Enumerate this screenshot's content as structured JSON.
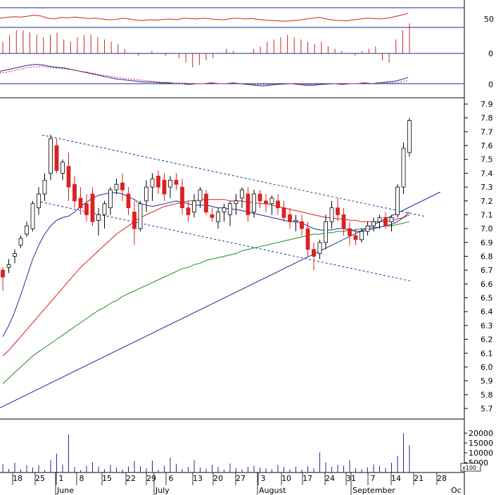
{
  "chart_data": {
    "type": "candlestick",
    "panels": {
      "rsi": {
        "ticks": [
          "50"
        ],
        "series": [
          52,
          54,
          56,
          55,
          57,
          60,
          58,
          52,
          50,
          54,
          53,
          55,
          53,
          51,
          52,
          50,
          48,
          49,
          52,
          50,
          47,
          46,
          48,
          47,
          49,
          50,
          48,
          52,
          51,
          50,
          52,
          50,
          49,
          48,
          51,
          52,
          50,
          51,
          49,
          47,
          46,
          45,
          44,
          46,
          47,
          50,
          52,
          54,
          50,
          47,
          46,
          45,
          48,
          50,
          52,
          51,
          50,
          52,
          56,
          60,
          65
        ]
      },
      "momentum": {
        "ticks": [
          "0"
        ],
        "values": [
          5,
          8,
          10,
          10,
          9,
          8,
          7,
          8,
          9,
          6,
          5,
          7,
          8,
          8,
          7,
          6,
          5,
          4,
          2,
          0,
          -1,
          0,
          1,
          0,
          -1,
          0,
          -2,
          -4,
          -6,
          -5,
          -3,
          -2,
          0,
          2,
          1,
          0,
          0,
          2,
          3,
          5,
          6,
          7,
          8,
          7,
          6,
          5,
          4,
          5,
          3,
          2,
          1,
          0,
          -1,
          1,
          2,
          3,
          -3,
          -4,
          6,
          10,
          13
        ]
      },
      "macd": {
        "ticks": [
          "0"
        ],
        "macd": [
          16,
          18,
          20,
          22,
          24,
          25,
          24,
          22,
          21,
          20,
          18,
          16,
          14,
          12,
          10,
          8,
          6,
          5,
          4,
          3,
          2,
          2,
          1,
          1,
          0,
          0,
          -1,
          0,
          0,
          1,
          0,
          0,
          1,
          0,
          -1,
          -2,
          -3,
          -2,
          -1,
          0,
          0,
          -1,
          -2,
          -2,
          -1,
          0,
          0,
          -1,
          0,
          0,
          1,
          0,
          1,
          2,
          3,
          5,
          8
        ],
        "signal": [
          14,
          15,
          17,
          19,
          21,
          22,
          22,
          21,
          20,
          19,
          18,
          16,
          15,
          13,
          11,
          10,
          8,
          7,
          6,
          5,
          4,
          3,
          2,
          2,
          1,
          1,
          0,
          0,
          0,
          0,
          0,
          0,
          0,
          0,
          0,
          -1,
          -1,
          -1,
          -1,
          -1,
          0,
          0,
          -1,
          -1,
          -1,
          -1,
          0,
          0,
          0,
          0,
          0,
          0,
          0,
          1,
          1,
          2,
          4
        ]
      }
    },
    "price": {
      "y_ticks": [
        "7.9",
        "7.8",
        "7.7",
        "7.6",
        "7.5",
        "7.4",
        "7.3",
        "7.2",
        "7.1",
        "7.0",
        "6.9",
        "6.8",
        "6.7",
        "6.6",
        "6.5",
        "6.4",
        "6.3",
        "6.2",
        "6.1",
        "6.0",
        "5.9",
        "5.8",
        "5.7"
      ],
      "ylim": [
        5.63,
        7.96
      ],
      "candles": [
        [
          6.7,
          6.72,
          6.55,
          6.65
        ],
        [
          6.72,
          6.78,
          6.68,
          6.74
        ],
        [
          6.8,
          6.85,
          6.75,
          6.82
        ],
        [
          6.88,
          6.95,
          6.86,
          6.93
        ],
        [
          6.96,
          7.05,
          6.94,
          7.02
        ],
        [
          7.0,
          7.2,
          6.98,
          7.18
        ],
        [
          7.15,
          7.3,
          7.1,
          7.25
        ],
        [
          7.25,
          7.4,
          7.2,
          7.35
        ],
        [
          7.4,
          7.68,
          7.35,
          7.65
        ],
        [
          7.6,
          7.65,
          7.4,
          7.42
        ],
        [
          7.4,
          7.5,
          7.35,
          7.48
        ],
        [
          7.45,
          7.55,
          7.2,
          7.3
        ],
        [
          7.32,
          7.38,
          7.15,
          7.2
        ],
        [
          7.22,
          7.3,
          7.1,
          7.15
        ],
        [
          7.18,
          7.25,
          7.05,
          7.1
        ],
        [
          7.25,
          7.3,
          7.02,
          7.05
        ],
        [
          7.06,
          7.15,
          6.95,
          7.1
        ],
        [
          7.1,
          7.2,
          7.0,
          7.18
        ],
        [
          7.15,
          7.3,
          7.1,
          7.28
        ],
        [
          7.28,
          7.36,
          7.25,
          7.32
        ],
        [
          7.33,
          7.4,
          7.2,
          7.28
        ],
        [
          7.25,
          7.3,
          7.1,
          7.15
        ],
        [
          7.12,
          7.2,
          6.88,
          7.0
        ],
        [
          7.0,
          7.2,
          6.98,
          7.18
        ],
        [
          7.2,
          7.35,
          7.12,
          7.3
        ],
        [
          7.3,
          7.4,
          7.2,
          7.36
        ],
        [
          7.38,
          7.42,
          7.25,
          7.3
        ],
        [
          7.35,
          7.4,
          7.2,
          7.25
        ],
        [
          7.3,
          7.38,
          7.22,
          7.35
        ],
        [
          7.35,
          7.4,
          7.28,
          7.32
        ],
        [
          7.3,
          7.36,
          7.1,
          7.15
        ],
        [
          7.15,
          7.2,
          7.05,
          7.1
        ],
        [
          7.12,
          7.25,
          7.08,
          7.2
        ],
        [
          7.2,
          7.3,
          7.15,
          7.28
        ],
        [
          7.25,
          7.28,
          7.1,
          7.12
        ],
        [
          7.1,
          7.15,
          7.05,
          7.08
        ],
        [
          7.05,
          7.15,
          7.0,
          7.12
        ],
        [
          7.12,
          7.18,
          7.05,
          7.15
        ],
        [
          7.1,
          7.2,
          7.02,
          7.18
        ],
        [
          7.18,
          7.25,
          7.1,
          7.2
        ],
        [
          7.22,
          7.3,
          7.15,
          7.28
        ],
        [
          7.25,
          7.3,
          7.05,
          7.1
        ],
        [
          7.12,
          7.28,
          7.08,
          7.25
        ],
        [
          7.25,
          7.28,
          7.15,
          7.2
        ],
        [
          7.2,
          7.25,
          7.12,
          7.18
        ],
        [
          7.18,
          7.24,
          7.1,
          7.22
        ],
        [
          7.2,
          7.25,
          7.1,
          7.15
        ],
        [
          7.15,
          7.2,
          7.05,
          7.08
        ],
        [
          7.1,
          7.15,
          7.0,
          7.05
        ],
        [
          7.05,
          7.1,
          6.98,
          7.06
        ],
        [
          7.05,
          7.1,
          6.95,
          7.0
        ],
        [
          7.0,
          7.05,
          6.8,
          6.85
        ],
        [
          6.85,
          6.9,
          6.7,
          6.8
        ],
        [
          6.82,
          6.92,
          6.78,
          6.9
        ],
        [
          6.9,
          7.1,
          6.85,
          7.05
        ],
        [
          7.05,
          7.2,
          7.0,
          7.15
        ],
        [
          7.15,
          7.22,
          7.05,
          7.1
        ],
        [
          7.1,
          7.15,
          6.95,
          7.0
        ],
        [
          7.0,
          7.05,
          6.88,
          6.95
        ],
        [
          6.95,
          7.0,
          6.88,
          6.92
        ],
        [
          6.92,
          7.0,
          6.9,
          6.98
        ],
        [
          6.98,
          7.05,
          6.95,
          7.02
        ],
        [
          7.02,
          7.08,
          6.98,
          7.05
        ],
        [
          7.05,
          7.1,
          7.0,
          7.08
        ],
        [
          7.08,
          7.12,
          7.0,
          7.02
        ],
        [
          7.05,
          7.1,
          6.98,
          7.08
        ],
        [
          7.1,
          7.32,
          7.08,
          7.3
        ],
        [
          7.3,
          7.62,
          7.25,
          7.58
        ],
        [
          7.55,
          7.8,
          7.52,
          7.78
        ]
      ],
      "ma_blue_short": [
        6.22,
        6.3,
        6.4,
        6.52,
        6.65,
        6.78,
        6.88,
        6.96,
        7.02,
        7.06,
        7.08,
        7.09,
        7.12,
        7.16,
        7.19,
        7.22,
        7.24,
        7.25,
        7.26,
        7.26,
        7.25,
        7.23,
        7.21,
        7.18,
        7.17,
        7.16,
        7.17,
        7.18,
        7.19,
        7.2,
        7.19,
        7.18,
        7.17,
        7.17,
        7.17,
        7.16,
        7.15,
        7.15,
        7.14,
        7.14,
        7.13,
        7.12,
        7.11,
        7.1,
        7.09,
        7.08,
        7.07,
        7.06,
        7.05,
        7.05,
        7.04,
        7.02,
        7.0,
        6.99,
        6.99,
        6.99,
        7.0,
        7.0,
        6.99,
        6.98,
        6.98,
        6.99,
        7.0,
        7.01,
        7.02,
        7.03,
        7.05,
        7.08,
        7.12
      ],
      "ma_red_mid": [
        6.08,
        6.12,
        6.17,
        6.22,
        6.27,
        6.32,
        6.37,
        6.42,
        6.47,
        6.52,
        6.57,
        6.62,
        6.67,
        6.72,
        6.76,
        6.8,
        6.84,
        6.88,
        6.92,
        6.96,
        6.99,
        7.02,
        7.05,
        7.08,
        7.1,
        7.12,
        7.14,
        7.16,
        7.17,
        7.18,
        7.19,
        7.2,
        7.2,
        7.21,
        7.21,
        7.21,
        7.21,
        7.21,
        7.2,
        7.2,
        7.2,
        7.19,
        7.19,
        7.18,
        7.18,
        7.17,
        7.16,
        7.15,
        7.14,
        7.13,
        7.12,
        7.11,
        7.1,
        7.09,
        7.08,
        7.08,
        7.07,
        7.07,
        7.06,
        7.06,
        7.05,
        7.05,
        7.05,
        7.05,
        7.05,
        7.06,
        7.07,
        7.08,
        7.1
      ],
      "ma_green_long": [
        5.88,
        5.92,
        5.96,
        6.0,
        6.04,
        6.08,
        6.11,
        6.14,
        6.17,
        6.2,
        6.23,
        6.26,
        6.29,
        6.32,
        6.35,
        6.38,
        6.41,
        6.43,
        6.46,
        6.48,
        6.51,
        6.53,
        6.55,
        6.57,
        6.59,
        6.61,
        6.63,
        6.65,
        6.67,
        6.69,
        6.71,
        6.72,
        6.74,
        6.75,
        6.77,
        6.78,
        6.79,
        6.8,
        6.81,
        6.82,
        6.84,
        6.85,
        6.86,
        6.87,
        6.88,
        6.89,
        6.9,
        6.91,
        6.92,
        6.93,
        6.94,
        6.95,
        6.96,
        6.96,
        6.97,
        6.97,
        6.98,
        6.98,
        6.99,
        6.99,
        7.0,
        7.0,
        7.01,
        7.01,
        7.02,
        7.02,
        7.03,
        7.04,
        7.05
      ]
    },
    "volume": {
      "y_ticks": [
        "20000",
        "15000",
        "10000",
        "5000"
      ],
      "unit_label": "x100",
      "values": [
        4200,
        1800,
        5000,
        1500,
        3600,
        2500,
        3800,
        1200,
        6200,
        9600,
        4100,
        19300,
        2800,
        1200,
        3400,
        5200,
        3000,
        1800,
        4000,
        2600,
        1500,
        3100,
        5800,
        3200,
        2000,
        6000,
        1400,
        3500,
        7600,
        4400,
        1800,
        2800,
        6200,
        2500,
        1900,
        3900,
        2800,
        1500,
        4600,
        2200,
        1500,
        2800,
        3500,
        2600,
        2100,
        1700,
        3800,
        2800,
        1600,
        2900,
        1500,
        3200,
        2200,
        10200,
        5100,
        2800,
        4000,
        3500,
        6200,
        2100,
        1600,
        2600,
        4100,
        3400,
        2400,
        5000,
        8400,
        20000,
        13800
      ]
    },
    "x_labels": {
      "days": [
        "18",
        "25",
        "1",
        "8",
        "15",
        "22",
        "29",
        "6",
        "13",
        "20",
        "27",
        "3",
        "10",
        "17",
        "24",
        "31",
        "7",
        "14",
        "21",
        "28"
      ],
      "months": [
        "June",
        "July",
        "August",
        "September"
      ],
      "cut": "Oc"
    }
  }
}
